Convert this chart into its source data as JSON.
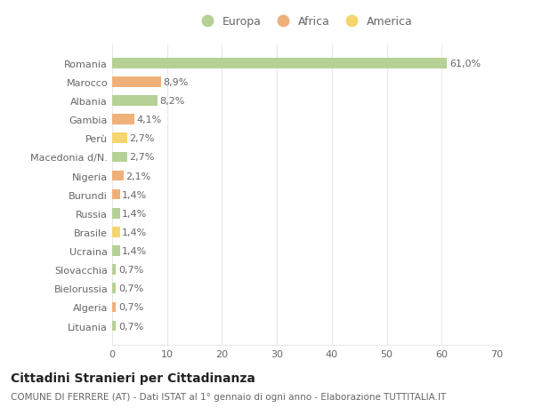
{
  "categories": [
    "Romania",
    "Marocco",
    "Albania",
    "Gambia",
    "Perù",
    "Macedonia d/N.",
    "Nigeria",
    "Burundi",
    "Russia",
    "Brasile",
    "Ucraina",
    "Slovacchia",
    "Bielorussia",
    "Algeria",
    "Lituania"
  ],
  "values": [
    61.0,
    8.9,
    8.2,
    4.1,
    2.7,
    2.7,
    2.1,
    1.4,
    1.4,
    1.4,
    1.4,
    0.7,
    0.7,
    0.7,
    0.7
  ],
  "labels": [
    "61,0%",
    "8,9%",
    "8,2%",
    "4,1%",
    "2,7%",
    "2,7%",
    "2,1%",
    "1,4%",
    "1,4%",
    "1,4%",
    "1,4%",
    "0,7%",
    "0,7%",
    "0,7%",
    "0,7%"
  ],
  "continents": [
    "Europa",
    "Africa",
    "Europa",
    "Africa",
    "America",
    "Europa",
    "Africa",
    "Africa",
    "Europa",
    "America",
    "Europa",
    "Europa",
    "Europa",
    "Africa",
    "Europa"
  ],
  "continent_colors": {
    "Europa": "#b5d196",
    "Africa": "#f0b07a",
    "America": "#f5d56e"
  },
  "xlim": [
    0,
    70
  ],
  "xticks": [
    0,
    10,
    20,
    30,
    40,
    50,
    60,
    70
  ],
  "background_color": "#ffffff",
  "grid_color": "#e8e8e8",
  "bar_height": 0.55,
  "title": "Cittadini Stranieri per Cittadinanza",
  "subtitle": "COMUNE DI FERRERE (AT) - Dati ISTAT al 1° gennaio di ogni anno - Elaborazione TUTTITALIA.IT",
  "title_fontsize": 10,
  "subtitle_fontsize": 7.5,
  "label_fontsize": 8,
  "tick_fontsize": 8,
  "legend_fontsize": 9,
  "text_color": "#666666"
}
